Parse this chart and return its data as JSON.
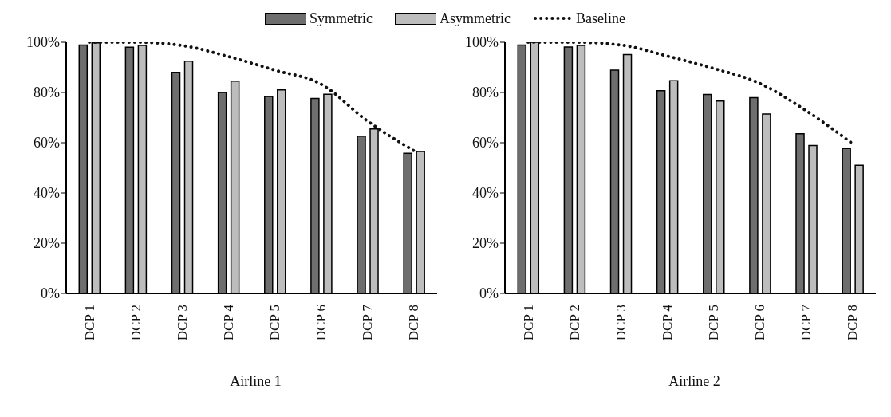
{
  "chart_data": [
    {
      "type": "bar",
      "xlabel": "Airline 1",
      "categories": [
        "DCP 1",
        "DCP 2",
        "DCP 3",
        "DCP 4",
        "DCP 5",
        "DCP 6",
        "DCP 7",
        "DCP 8"
      ],
      "series": [
        {
          "name": "Symmetric",
          "color": "#6e6e6e",
          "values": [
            98.9,
            98,
            88,
            80,
            78.4,
            77.6,
            62.6,
            55.8
          ]
        },
        {
          "name": "Asymmetric",
          "color": "#bdbdbd",
          "values": [
            99.8,
            98.7,
            92.5,
            84.5,
            81,
            79.3,
            65.5,
            56.5
          ]
        },
        {
          "name": "Baseline",
          "type": "line",
          "color": "#111111",
          "line_style": "dotted",
          "values": [
            100,
            100,
            98.7,
            94.3,
            88.9,
            83.3,
            68.6,
            56.8
          ]
        }
      ],
      "ylim": [
        0,
        100
      ],
      "yticks": [
        {
          "value": 0,
          "label": "0%"
        },
        {
          "value": 20,
          "label": "20%"
        },
        {
          "value": 40,
          "label": "40%"
        },
        {
          "value": 60,
          "label": "60%"
        },
        {
          "value": 80,
          "label": "80%"
        },
        {
          "value": 100,
          "label": "100%"
        }
      ],
      "grid": false,
      "legend": "top"
    },
    {
      "type": "bar",
      "xlabel": "Airline 2",
      "categories": [
        "DCP 1",
        "DCP 2",
        "DCP 3",
        "DCP 4",
        "DCP 5",
        "DCP 6",
        "DCP 7",
        "DCP 8"
      ],
      "series": [
        {
          "color": "#6e6e6e",
          "values": [
            98.9,
            98.1,
            88.9,
            80.7,
            79.2,
            77.9,
            63.6,
            57.7
          ]
        },
        {
          "color": "#bdbdbd",
          "values": [
            100,
            98.7,
            95.1,
            84.7,
            76.6,
            71.4,
            58.9,
            51
          ]
        },
        {
          "type": "line",
          "color": "#111111",
          "line_style": "dotted",
          "values": [
            100,
            100,
            98.9,
            94.5,
            89.6,
            83.6,
            72.7,
            59.6
          ]
        }
      ],
      "ylim": [
        0,
        100
      ],
      "yticks": [
        {
          "value": 0,
          "label": "0%"
        },
        {
          "value": 20,
          "label": "20%"
        },
        {
          "value": 40,
          "label": "40%"
        },
        {
          "value": 60,
          "label": "60%"
        },
        {
          "value": 80,
          "label": "80%"
        },
        {
          "value": 100,
          "label": "100%"
        }
      ],
      "grid": false
    }
  ]
}
